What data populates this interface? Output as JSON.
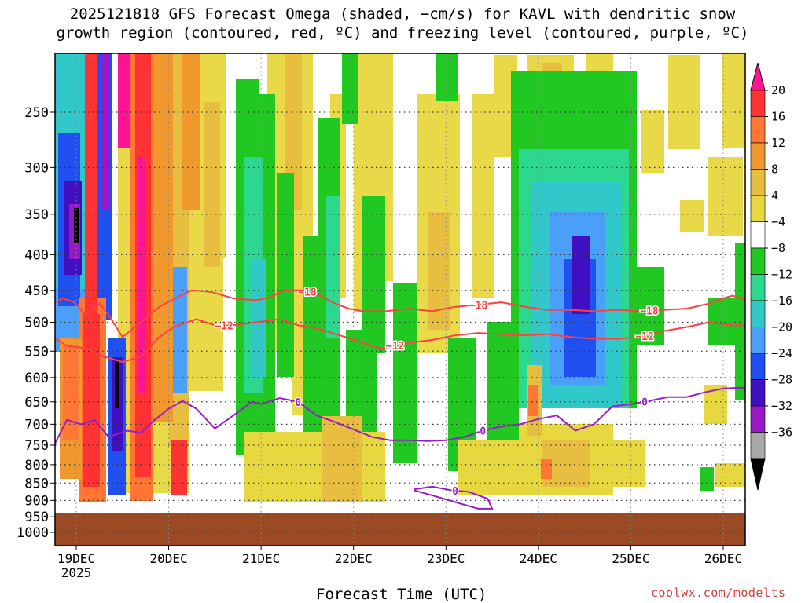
{
  "title_line1": "2025121818 GFS Forecast Omega (shaded, −cm/s) for KAVL with dendritic snow",
  "title_line2": "growth region (contoured, red, ºC) and freezing level (contoured, purple, ºC)",
  "credit": "coolwx.com/modelts",
  "chart_data": {
    "type": "time-height cross section (filled contour + line contours)",
    "title": "2025121818 GFS Forecast Omega (shaded, −cm/s) for KAVL with dendritic snow growth region (contoured, red, ºC) and freezing level (contoured, purple, ºC)",
    "xlabel": "Forecast Time (UTC)",
    "ylabel": "",
    "x_ticks": [
      "19DEC",
      "20DEC",
      "21DEC",
      "22DEC",
      "23DEC",
      "24DEC",
      "25DEC",
      "26DEC"
    ],
    "x_year_label": "2025",
    "x_range_days": [
      18.75,
      26.25
    ],
    "y_ticks": [
      250,
      300,
      350,
      400,
      450,
      500,
      550,
      600,
      650,
      700,
      750,
      800,
      850,
      900,
      950,
      1000
    ],
    "y_range_hpa": [
      200,
      1015
    ],
    "y_reversed": true,
    "ground_top_hpa": 938,
    "colorbar": {
      "levels": [
        20,
        16,
        12,
        8,
        4,
        -4,
        -8,
        -12,
        -16,
        -20,
        -24,
        -28,
        -32,
        -36
      ],
      "level_labels": [
        "20",
        "16",
        "12",
        "8",
        "4",
        "−4",
        "−8",
        "−12",
        "−16",
        "−20",
        "−24",
        "−28",
        "−32",
        "−36"
      ],
      "colors": [
        "#ff1493",
        "#ff3333",
        "#ff7733",
        "#f0982e",
        "#e8be40",
        "#e8d840",
        "#ffffff",
        "#22c822",
        "#2cd890",
        "#30c8c8",
        "#4aa0f8",
        "#2050f0",
        "#4010c0",
        "#9818c8",
        "#a8a8a8",
        "#000000"
      ]
    },
    "series": [
      {
        "name": "-18 C isotherm (red)",
        "color": "#ff4040",
        "label": "−18",
        "x": [
          18.75,
          18.85,
          18.98,
          19.1,
          19.25,
          19.35,
          19.5,
          19.7,
          19.9,
          20.1,
          20.25,
          20.45,
          20.7,
          20.95,
          21.1,
          21.25,
          21.45,
          21.6,
          21.8,
          21.95,
          22.1,
          22.35,
          22.6,
          22.85,
          23.1,
          23.35,
          23.6,
          23.85,
          24.1,
          24.35,
          24.6,
          24.85,
          25.1,
          25.35,
          25.6,
          25.85,
          26.0,
          26.1,
          26.25
        ],
        "y": [
          470,
          462,
          468,
          488,
          470,
          488,
          525,
          500,
          475,
          460,
          450,
          452,
          462,
          465,
          460,
          450,
          450,
          455,
          470,
          478,
          482,
          482,
          478,
          482,
          475,
          472,
          468,
          475,
          480,
          480,
          482,
          480,
          482,
          480,
          478,
          470,
          462,
          458,
          465
        ],
        "label_positions": [
          21.5,
          23.35,
          25.2
        ]
      },
      {
        "name": "-12 C isotherm (red)",
        "color": "#ff4040",
        "label": "−12",
        "x": [
          18.75,
          18.9,
          19.1,
          19.3,
          19.5,
          19.7,
          19.9,
          20.05,
          20.3,
          20.5,
          20.7,
          20.95,
          21.2,
          21.4,
          21.6,
          21.85,
          22.1,
          22.3,
          22.45,
          22.6,
          22.85,
          23.1,
          23.35,
          23.6,
          23.85,
          24.1,
          24.35,
          24.6,
          24.85,
          25.1,
          25.35,
          25.6,
          25.85,
          26.1,
          26.25
        ],
        "y": [
          526,
          540,
          545,
          560,
          570,
          560,
          525,
          508,
          495,
          505,
          505,
          500,
          495,
          505,
          510,
          522,
          535,
          545,
          540,
          535,
          530,
          522,
          518,
          520,
          522,
          520,
          525,
          528,
          528,
          525,
          515,
          508,
          500,
          505,
          505
        ],
        "label_positions": [
          20.6,
          22.45,
          25.15
        ]
      },
      {
        "name": "0 C freezing level (purple)",
        "color": "#9a1cc8",
        "label": "0",
        "x": [
          18.75,
          18.9,
          19.05,
          19.2,
          19.35,
          19.55,
          19.7,
          19.85,
          20.0,
          20.15,
          20.3,
          20.5,
          20.7,
          20.9,
          21.0,
          21.2,
          21.4,
          21.6,
          21.8,
          22.0,
          22.2,
          22.4,
          22.6,
          22.8,
          23.0,
          23.2,
          23.4,
          23.6,
          23.8,
          24.0,
          24.2,
          24.4,
          24.6,
          24.8,
          25.0,
          25.2,
          25.4,
          25.6,
          25.8,
          26.0,
          26.25
        ],
        "y": [
          755,
          690,
          700,
          690,
          730,
          715,
          720,
          690,
          665,
          648,
          665,
          710,
          680,
          650,
          655,
          642,
          650,
          680,
          695,
          712,
          730,
          738,
          738,
          740,
          738,
          730,
          715,
          705,
          700,
          688,
          680,
          715,
          700,
          660,
          655,
          648,
          640,
          640,
          630,
          622,
          620
        ],
        "label_positions": [
          21.4,
          23.4,
          25.15
        ]
      },
      {
        "name": "0 C freezing level, low-level segments (purple)",
        "color": "#9a1cc8",
        "label": "0",
        "x": [
          22.65,
          22.85,
          23.05,
          23.25,
          23.45,
          23.5,
          23.35,
          23.1,
          22.85,
          22.65
        ],
        "y": [
          868,
          860,
          870,
          875,
          895,
          925,
          925,
          905,
          885,
          870
        ],
        "label_positions": [
          23.1
        ]
      }
    ],
    "omega_fields": [
      {
        "name": "upward motion maximum (magenta/red)",
        "time": "19DEC-20DEC",
        "pressure_range_hpa": [
          200,
          900
        ],
        "max_value": 20
      },
      {
        "name": "downward motion core (blue/purple)",
        "time": "18DEC-19DEC",
        "pressure_range_hpa": [
          230,
          450
        ],
        "min_value": -36
      },
      {
        "name": "downward motion core (blue/purple)",
        "time": "24DEC",
        "pressure_range_hpa": [
          300,
          510
        ],
        "min_value": -28
      }
    ]
  }
}
